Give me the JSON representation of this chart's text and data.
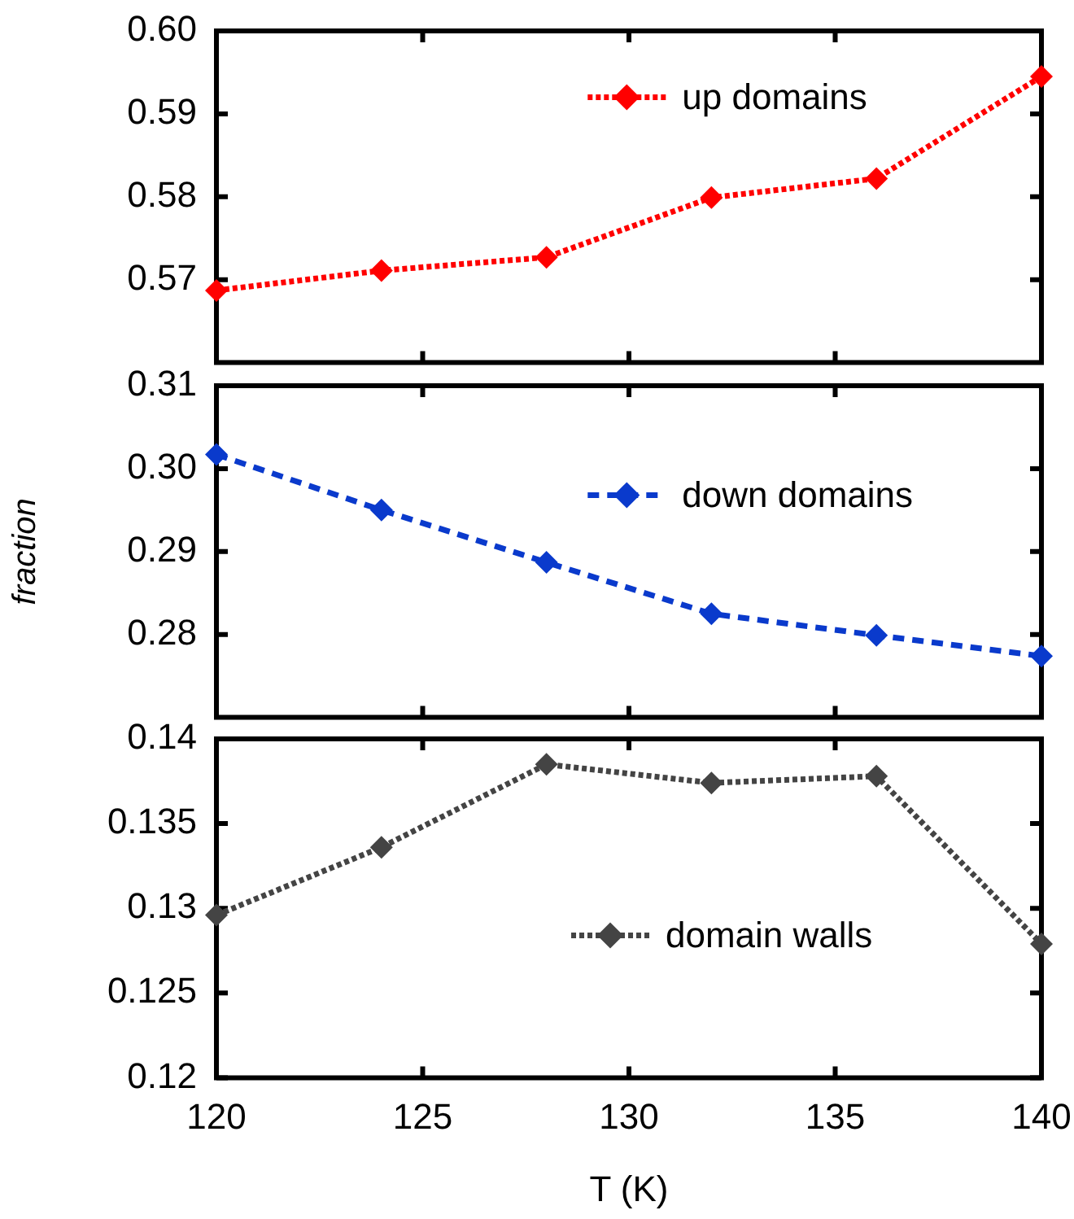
{
  "chart_data": [
    {
      "type": "line",
      "x": [
        120,
        124,
        128,
        132,
        136,
        140
      ],
      "xlim": [
        120,
        140
      ],
      "xticks": [
        120,
        125,
        130,
        135,
        140
      ],
      "ylim": [
        0.56,
        0.6
      ],
      "yticks": [
        0.57,
        0.58,
        0.59,
        {
          "value": 0.6,
          "label": "0.60"
        }
      ],
      "tick_labels": "y",
      "legend": "top right",
      "marker": "diamond",
      "line_style": "dotted",
      "grid": false,
      "series": [
        {
          "name": "up domains",
          "color": "#ff0000",
          "values": [
            0.5687,
            0.5711,
            0.5727,
            0.5799,
            0.5822,
            0.5945
          ]
        }
      ]
    },
    {
      "type": "line",
      "x": [
        120,
        124,
        128,
        132,
        136,
        140
      ],
      "xlim": [
        120,
        140
      ],
      "xticks": [
        120,
        125,
        130,
        135,
        140
      ],
      "ylim": [
        0.27,
        0.31
      ],
      "yticks": [
        0.28,
        0.29,
        {
          "value": 0.3,
          "label": "0.30"
        },
        0.31
      ],
      "tick_labels": "y",
      "legend": "right",
      "marker": "diamond",
      "line_style": "dashed",
      "grid": false,
      "ylabel": "fraction",
      "series": [
        {
          "name": "down domains",
          "color": "#0a3acc",
          "values": [
            0.3017,
            0.295,
            0.2887,
            0.2825,
            0.2799,
            0.2774
          ]
        }
      ]
    },
    {
      "type": "line",
      "x": [
        120,
        124,
        128,
        132,
        136,
        140
      ],
      "xlim": [
        120,
        140
      ],
      "xticks": [
        120,
        125,
        130,
        135,
        140
      ],
      "ylim": [
        0.12,
        0.14
      ],
      "yticks": [
        0.12,
        0.125,
        0.13,
        0.135,
        0.14
      ],
      "legend": "bottom right",
      "marker": "diamond",
      "line_style": "dotted",
      "grid": false,
      "xlabel": "T (K)",
      "series": [
        {
          "name": "domain walls",
          "color": "#444444",
          "values": [
            0.1296,
            0.1336,
            0.1385,
            0.1374,
            0.1378,
            0.1279
          ]
        }
      ]
    }
  ]
}
